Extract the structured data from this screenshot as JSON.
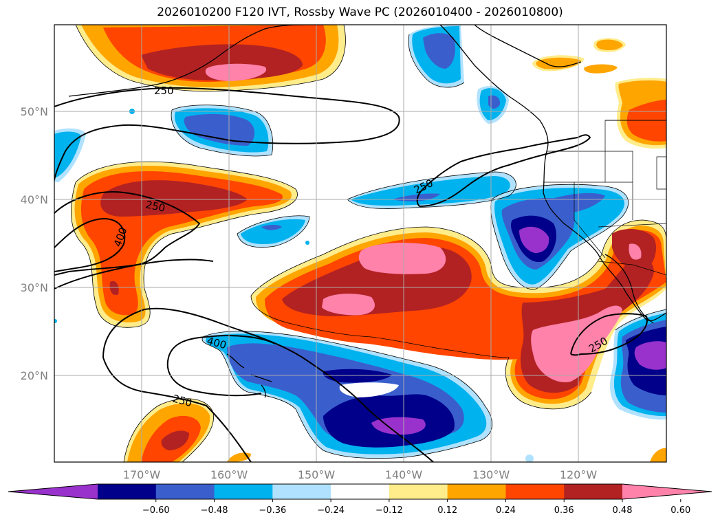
{
  "title": "2026010200 F120 IVT, Rossby Wave PC (2026010400 - 2026010800)",
  "lat_labels": [
    "50°N",
    "40°N",
    "30°N",
    "20°N"
  ],
  "lon_labels": [
    "170°W",
    "160°W",
    "150°W",
    "140°W",
    "130°W",
    "120°W"
  ],
  "colorbar": {
    "ticks": [
      "−0.60",
      "−0.48",
      "−0.36",
      "−0.24",
      "−0.12",
      "0.12",
      "0.24",
      "0.36",
      "0.48",
      "0.60"
    ],
    "colors": [
      "#9932CC",
      "#00008B",
      "#3A5FCD",
      "#00B2EE",
      "#B0E2FF",
      "#FFFFFF",
      "#FFEC8B",
      "#FFA500",
      "#FF4500",
      "#B22222",
      "#FF82AB"
    ],
    "extend": "both"
  },
  "contour_labels": [
    "250",
    "250",
    "400",
    "250",
    "400",
    "250",
    "250"
  ]
}
